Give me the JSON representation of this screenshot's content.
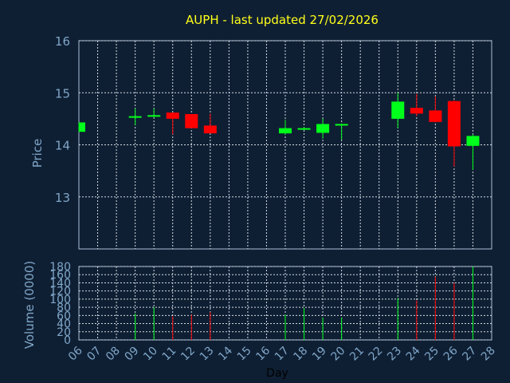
{
  "colors": {
    "background": "#0f1f33",
    "frame": "#a9bfd4",
    "grid": "#d2dbe4",
    "title": "#ffff1a",
    "axis_text": "#7fa6c8",
    "xlabel_text": "#000000",
    "up": "#00ff1a",
    "down": "#ff0000"
  },
  "chart_data": [
    {
      "type": "candlestick",
      "title": "AUPH - last updated 27/02/2026",
      "ylabel": "Price",
      "ylim": [
        12.0,
        16.0
      ],
      "yticks": [
        "13",
        "14",
        "15",
        "16"
      ],
      "grid": true,
      "x": [
        "06",
        "07",
        "08",
        "09",
        "10",
        "11",
        "12",
        "13",
        "14",
        "15",
        "16",
        "17",
        "18",
        "19",
        "20",
        "21",
        "22",
        "23",
        "24",
        "25",
        "26",
        "27",
        "28"
      ],
      "candles": [
        {
          "day": "06",
          "open": 14.25,
          "close": 14.43,
          "high": 14.43,
          "low": 14.25
        },
        {
          "day": "09",
          "open": 14.53,
          "close": 14.55,
          "high": 14.7,
          "low": 14.38
        },
        {
          "day": "10",
          "open": 14.54,
          "close": 14.57,
          "high": 14.7,
          "low": 14.52
        },
        {
          "day": "11",
          "open": 14.62,
          "close": 14.5,
          "high": 14.62,
          "low": 14.2
        },
        {
          "day": "12",
          "open": 14.59,
          "close": 14.32,
          "high": 14.59,
          "low": 14.32
        },
        {
          "day": "13",
          "open": 14.37,
          "close": 14.22,
          "high": 14.6,
          "low": 14.22
        },
        {
          "day": "17",
          "open": 14.22,
          "close": 14.32,
          "high": 14.48,
          "low": 14.2
        },
        {
          "day": "18",
          "open": 14.3,
          "close": 14.32,
          "high": 14.34,
          "low": 14.28
        },
        {
          "day": "19",
          "open": 14.23,
          "close": 14.4,
          "high": 14.5,
          "low": 14.12
        },
        {
          "day": "20",
          "open": 14.39,
          "close": 14.4,
          "high": 14.41,
          "low": 14.1
        },
        {
          "day": "23",
          "open": 14.5,
          "close": 14.83,
          "high": 15.0,
          "low": 14.32
        },
        {
          "day": "24",
          "open": 14.71,
          "close": 14.6,
          "high": 14.98,
          "low": 14.55
        },
        {
          "day": "25",
          "open": 14.66,
          "close": 14.44,
          "high": 14.93,
          "low": 14.43
        },
        {
          "day": "26",
          "open": 14.84,
          "close": 13.97,
          "high": 14.86,
          "low": 13.58
        },
        {
          "day": "27",
          "open": 13.98,
          "close": 14.17,
          "high": 14.2,
          "low": 13.52
        }
      ]
    },
    {
      "type": "bar",
      "ylabel": "Volume (0000)",
      "xlabel": "Day",
      "ylim": [
        0,
        180
      ],
      "yticks": [
        "0",
        "20",
        "40",
        "60",
        "80",
        "100",
        "120",
        "140",
        "160",
        "180"
      ],
      "grid": true,
      "categories": [
        "06",
        "07",
        "08",
        "09",
        "10",
        "11",
        "12",
        "13",
        "14",
        "15",
        "16",
        "17",
        "18",
        "19",
        "20",
        "21",
        "22",
        "23",
        "24",
        "25",
        "26",
        "27",
        "28"
      ],
      "bars": [
        {
          "day": "09",
          "value": 65,
          "direction": "up"
        },
        {
          "day": "10",
          "value": 80,
          "direction": "up"
        },
        {
          "day": "11",
          "value": 58,
          "direction": "down"
        },
        {
          "day": "12",
          "value": 62,
          "direction": "down"
        },
        {
          "day": "13",
          "value": 68,
          "direction": "down"
        },
        {
          "day": "17",
          "value": 62,
          "direction": "up"
        },
        {
          "day": "18",
          "value": 78,
          "direction": "up"
        },
        {
          "day": "19",
          "value": 55,
          "direction": "up"
        },
        {
          "day": "20",
          "value": 55,
          "direction": "up"
        },
        {
          "day": "23",
          "value": 103,
          "direction": "up"
        },
        {
          "day": "24",
          "value": 97,
          "direction": "down"
        },
        {
          "day": "25",
          "value": 155,
          "direction": "down"
        },
        {
          "day": "26",
          "value": 140,
          "direction": "down"
        },
        {
          "day": "27",
          "value": 180,
          "direction": "up"
        }
      ]
    }
  ]
}
